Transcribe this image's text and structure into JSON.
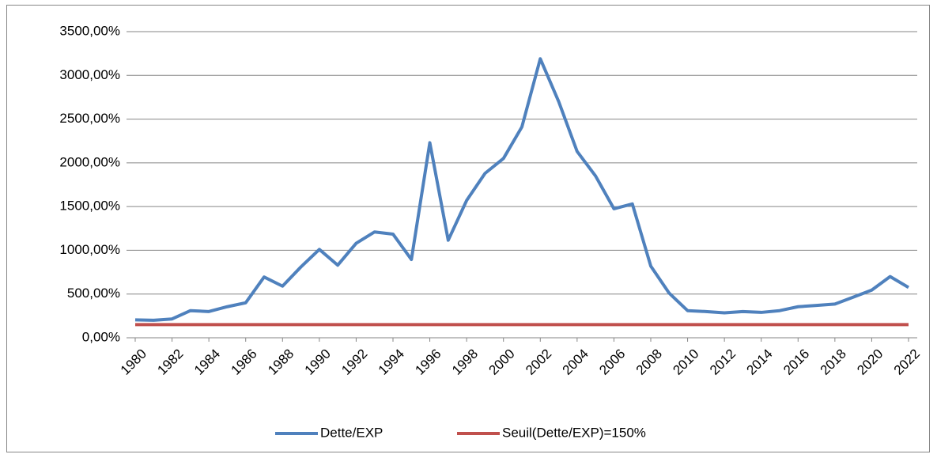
{
  "chart_data": {
    "type": "line",
    "x": [
      1980,
      1981,
      1982,
      1983,
      1984,
      1985,
      1986,
      1987,
      1988,
      1989,
      1990,
      1991,
      1992,
      1993,
      1994,
      1995,
      1996,
      1997,
      1998,
      1999,
      2000,
      2001,
      2002,
      2003,
      2004,
      2005,
      2006,
      2007,
      2008,
      2009,
      2010,
      2011,
      2012,
      2013,
      2014,
      2015,
      2016,
      2017,
      2018,
      2019,
      2020,
      2021,
      2022
    ],
    "xlim": [
      1980,
      2022
    ],
    "xticks": [
      1980,
      1982,
      1984,
      1986,
      1988,
      1990,
      1992,
      1994,
      1996,
      1998,
      2000,
      2002,
      2004,
      2006,
      2008,
      2010,
      2012,
      2014,
      2016,
      2018,
      2020,
      2022
    ],
    "ylim": [
      0,
      3500
    ],
    "yticks": [
      {
        "value": 0,
        "label": "0,00%"
      },
      {
        "value": 500,
        "label": "500,00%"
      },
      {
        "value": 1000,
        "label": "1000,00%"
      },
      {
        "value": 1500,
        "label": "1500,00%"
      },
      {
        "value": 2000,
        "label": "2000,00%"
      },
      {
        "value": 2500,
        "label": "2500,00%"
      },
      {
        "value": 3000,
        "label": "3000,00%"
      },
      {
        "value": 3500,
        "label": "3500,00%"
      }
    ],
    "grid": true,
    "legend": "bottom",
    "series": [
      {
        "name": "Dette/EXP",
        "color": "#4f81bd",
        "values": [
          205,
          200,
          215,
          310,
          300,
          355,
          400,
          695,
          590,
          810,
          1010,
          830,
          1080,
          1210,
          1185,
          895,
          2230,
          1115,
          1570,
          1880,
          2050,
          2410,
          3190,
          2700,
          2130,
          1850,
          1475,
          1530,
          820,
          510,
          310,
          300,
          285,
          300,
          290,
          310,
          355,
          370,
          385,
          465,
          545,
          700,
          575
        ]
      },
      {
        "name": "Seuil(Dette/EXP)=150%",
        "color": "#c0504d",
        "values": [
          150,
          150,
          150,
          150,
          150,
          150,
          150,
          150,
          150,
          150,
          150,
          150,
          150,
          150,
          150,
          150,
          150,
          150,
          150,
          150,
          150,
          150,
          150,
          150,
          150,
          150,
          150,
          150,
          150,
          150,
          150,
          150,
          150,
          150,
          150,
          150,
          150,
          150,
          150,
          150,
          150,
          150,
          150
        ]
      }
    ]
  }
}
